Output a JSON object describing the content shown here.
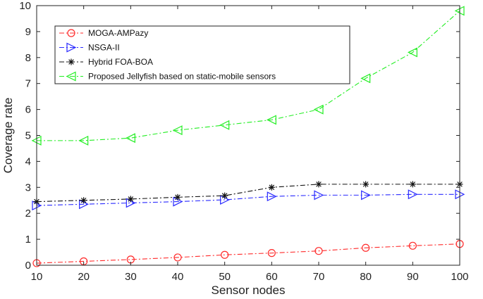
{
  "chart_data": {
    "type": "line",
    "title": "",
    "xlabel": "Sensor nodes",
    "ylabel": "Coverage rate",
    "xlim": [
      10,
      100
    ],
    "ylim": [
      0,
      10
    ],
    "x": [
      10,
      20,
      30,
      40,
      50,
      60,
      70,
      80,
      90,
      100
    ],
    "xticks": [
      10,
      20,
      30,
      40,
      50,
      60,
      70,
      80,
      90,
      100
    ],
    "yticks": [
      0,
      1,
      2,
      3,
      4,
      5,
      6,
      7,
      8,
      9,
      10
    ],
    "grid": false,
    "legend_position": "top-left",
    "series": [
      {
        "name": "MOGA-AMPazy",
        "color": "#ff2a2a",
        "marker": "circle",
        "values": [
          0.08,
          0.15,
          0.22,
          0.3,
          0.4,
          0.47,
          0.55,
          0.67,
          0.75,
          0.82
        ]
      },
      {
        "name": "NSGA-II",
        "color": "#2a2aff",
        "marker": "triangle-right",
        "values": [
          2.3,
          2.35,
          2.4,
          2.45,
          2.52,
          2.65,
          2.7,
          2.7,
          2.73,
          2.73
        ]
      },
      {
        "name": "Hybrid FOA-BOA",
        "color": "#111111",
        "marker": "asterisk",
        "values": [
          2.45,
          2.5,
          2.55,
          2.62,
          2.68,
          3.0,
          3.12,
          3.12,
          3.12,
          3.12
        ]
      },
      {
        "name": "Proposed Jellyfish based on static-mobile sensors",
        "color": "#22ee22",
        "marker": "triangle-left",
        "values": [
          4.8,
          4.8,
          4.9,
          5.2,
          5.4,
          5.6,
          6.0,
          7.2,
          8.2,
          9.8
        ]
      }
    ]
  }
}
